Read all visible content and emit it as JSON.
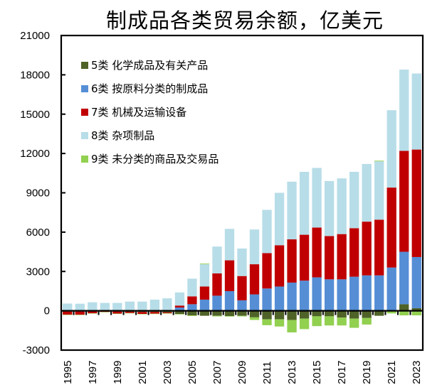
{
  "chart_data": {
    "type": "bar",
    "stacked": true,
    "title": "制成品各类贸易余额，亿美元",
    "xlabel": "",
    "ylabel": "",
    "ylim": [
      -3000,
      21000
    ],
    "yticks": [
      -3000,
      0,
      3000,
      6000,
      9000,
      12000,
      15000,
      18000,
      21000
    ],
    "grid": false,
    "legend_position": "top-left",
    "categories": [
      "1995",
      "1996",
      "1997",
      "1998",
      "1999",
      "2000",
      "2001",
      "2002",
      "2003",
      "2004",
      "2005",
      "2006",
      "2007",
      "2008",
      "2009",
      "2010",
      "2011",
      "2012",
      "2013",
      "2014",
      "2015",
      "2016",
      "2017",
      "2018",
      "2019",
      "2020",
      "2021",
      "2022",
      "2023"
    ],
    "xtick_labels": [
      "1995",
      "1997",
      "1999",
      "2001",
      "2003",
      "2005",
      "2007",
      "2009",
      "2011",
      "2013",
      "2015",
      "2017",
      "2019",
      "2021",
      "2023"
    ],
    "series": [
      {
        "name": "5类 化学成品及有关产品",
        "color": "#4f6228",
        "values": [
          -60,
          -60,
          -50,
          -40,
          -60,
          -70,
          -90,
          -90,
          -120,
          -250,
          -350,
          -380,
          -380,
          -400,
          -380,
          -500,
          -650,
          -650,
          -700,
          -600,
          -420,
          -420,
          -520,
          -600,
          -550,
          -380,
          0,
          500,
          200
        ]
      },
      {
        "name": "6类 按原料分类的制成品",
        "color": "#558ed5",
        "values": [
          0,
          0,
          0,
          0,
          0,
          0,
          0,
          0,
          0,
          250,
          500,
          850,
          1150,
          1500,
          800,
          1250,
          1700,
          1850,
          2150,
          2300,
          2550,
          2400,
          2400,
          2600,
          2700,
          2700,
          3300,
          4000,
          3900
        ]
      },
      {
        "name": "7类 机械及运输设备",
        "color": "#c00000",
        "values": [
          -230,
          -240,
          -140,
          -50,
          -150,
          -100,
          -150,
          -130,
          -70,
          150,
          600,
          1000,
          1700,
          2350,
          1850,
          2300,
          2700,
          3150,
          3300,
          3500,
          3800,
          3300,
          3450,
          3700,
          4100,
          4250,
          6100,
          7700,
          8200
        ]
      },
      {
        "name": "8类 杂项制品",
        "color": "#b7dde8",
        "values": [
          550,
          540,
          650,
          600,
          600,
          700,
          700,
          850,
          950,
          1000,
          1350,
          1700,
          2050,
          2400,
          2100,
          2650,
          3300,
          4000,
          4400,
          4800,
          4550,
          4200,
          4250,
          4300,
          4400,
          4450,
          5900,
          6200,
          5800
        ]
      },
      {
        "name": "9类 未分类的商品及交易品",
        "color": "#92d050",
        "values": [
          -30,
          -30,
          -30,
          -30,
          -30,
          -30,
          -30,
          -30,
          -30,
          -30,
          -50,
          50,
          -50,
          -40,
          -50,
          -200,
          -450,
          -550,
          -950,
          -800,
          -750,
          -700,
          -600,
          -700,
          -500,
          50,
          -200,
          -350,
          -350
        ]
      }
    ]
  }
}
